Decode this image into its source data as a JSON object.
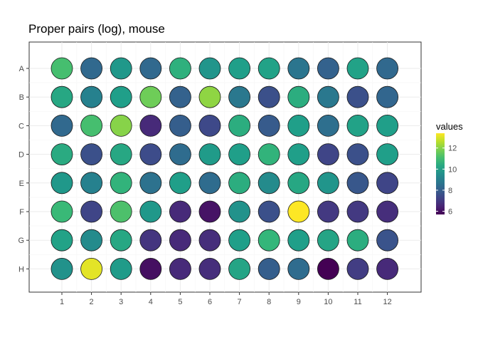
{
  "chart_data": {
    "type": "scatter",
    "title": "Proper pairs (log), mouse",
    "xlabel": "",
    "ylabel": "",
    "rows": [
      "A",
      "B",
      "C",
      "D",
      "E",
      "F",
      "G",
      "H"
    ],
    "columns": [
      "1",
      "2",
      "3",
      "4",
      "5",
      "6",
      "7",
      "8",
      "9",
      "10",
      "11",
      "12"
    ],
    "values": [
      [
        11.1,
        8.3,
        9.8,
        8.3,
        10.6,
        9.7,
        10.0,
        10.1,
        8.7,
        8.1,
        10.1,
        8.3
      ],
      [
        10.3,
        9.1,
        10.0,
        11.7,
        8.1,
        12.1,
        8.8,
        7.6,
        10.5,
        8.8,
        7.6,
        8.2
      ],
      [
        8.3,
        11.1,
        12.0,
        6.6,
        8.0,
        7.4,
        10.5,
        7.9,
        10.0,
        8.5,
        10.1,
        10.0
      ],
      [
        10.4,
        7.6,
        10.3,
        7.5,
        8.4,
        9.9,
        10.0,
        10.7,
        10.0,
        7.3,
        7.6,
        10.0
      ],
      [
        9.8,
        9.1,
        10.7,
        8.6,
        10.0,
        8.4,
        10.5,
        9.4,
        10.3,
        9.7,
        7.8,
        7.3
      ],
      [
        10.9,
        7.3,
        11.2,
        9.8,
        6.6,
        6.1,
        9.6,
        7.6,
        13.4,
        7.0,
        7.0,
        6.7
      ],
      [
        10.1,
        9.4,
        10.3,
        6.9,
        6.6,
        6.7,
        10.0,
        10.8,
        10.0,
        10.2,
        10.5,
        7.7
      ],
      [
        9.6,
        13.1,
        9.9,
        6.0,
        6.6,
        6.7,
        10.2,
        8.0,
        8.4,
        5.7,
        7.1,
        6.6
      ]
    ],
    "legend": {
      "title": "values",
      "position": "right",
      "ticks": [
        "6",
        "8",
        "10",
        "12"
      ],
      "tick_values": [
        6,
        8,
        10,
        12
      ],
      "range": [
        5.7,
        13.4
      ]
    },
    "colormap": "viridis",
    "grid": true
  }
}
